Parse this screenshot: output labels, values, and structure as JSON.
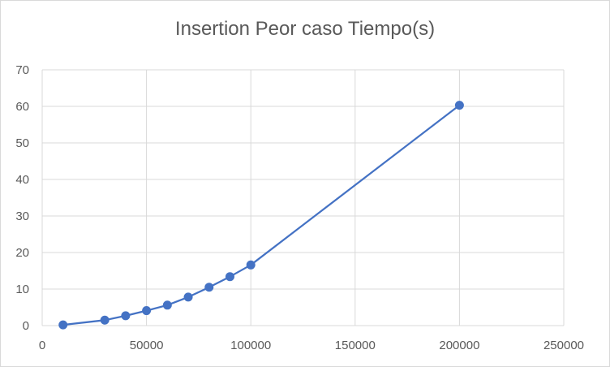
{
  "chart_data": {
    "type": "scatter",
    "title": "Insertion Peor caso Tiempo(s)",
    "xlabel": "",
    "ylabel": "",
    "xlim": [
      0,
      250000
    ],
    "ylim": [
      0,
      70
    ],
    "x_ticks": [
      0,
      50000,
      100000,
      150000,
      200000,
      250000
    ],
    "y_ticks": [
      0,
      10,
      20,
      30,
      40,
      50,
      60,
      70
    ],
    "grid": true,
    "legend": "none",
    "series": [
      {
        "color": "#4472c4",
        "markers": true,
        "line": true,
        "x": [
          10000,
          30000,
          40000,
          50000,
          60000,
          70000,
          80000,
          90000,
          100000,
          200000
        ],
        "y": [
          0.2,
          1.5,
          2.7,
          4.1,
          5.6,
          7.8,
          10.5,
          13.4,
          16.6,
          60.3
        ]
      }
    ]
  }
}
